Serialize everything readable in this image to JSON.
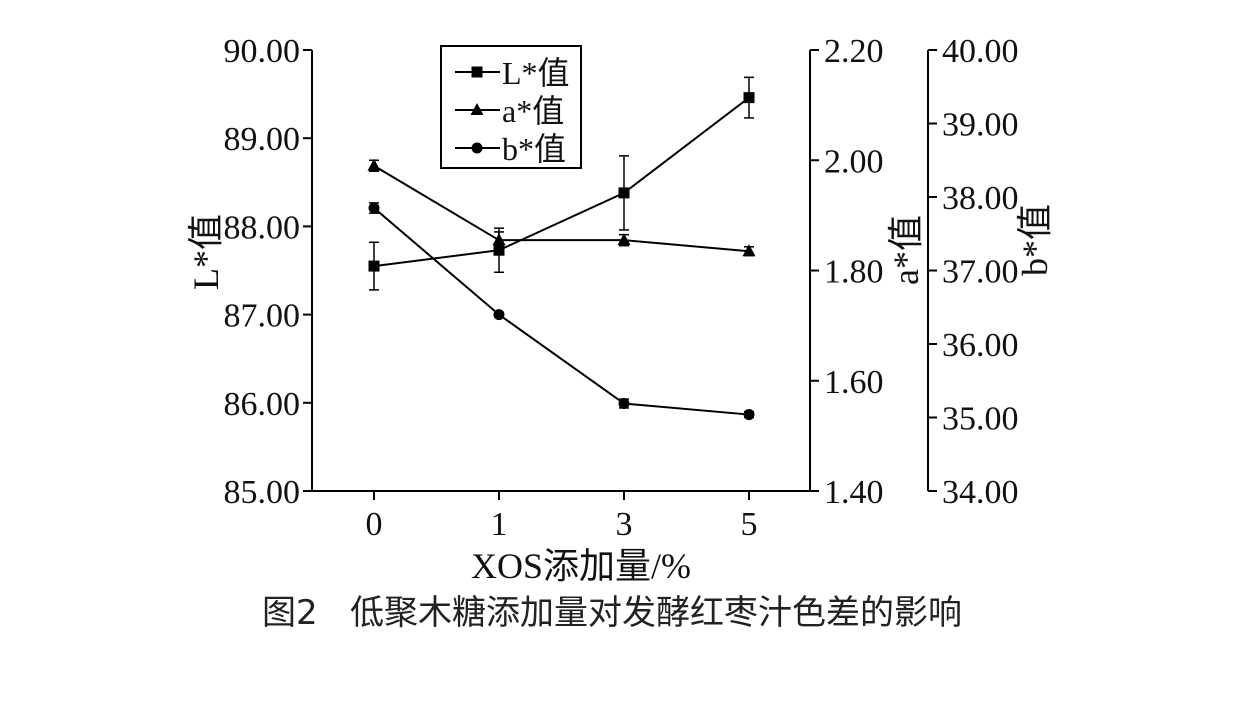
{
  "chart_data": {
    "type": "line",
    "x": [
      "0",
      "1",
      "3",
      "5"
    ],
    "xlabel": "XOS添加量/%",
    "series": [
      {
        "name": "L*值",
        "marker": "square",
        "axis": "left",
        "values": [
          87.55,
          87.73,
          88.38,
          89.46
        ],
        "errors": [
          0.27,
          0.25,
          0.42,
          0.23
        ]
      },
      {
        "name": "a*值",
        "marker": "triangle",
        "axis": "right1",
        "values": [
          1.99,
          1.855,
          1.855,
          1.835
        ],
        "errors": [
          0.01,
          0.015,
          0.01,
          0.008
        ]
      },
      {
        "name": "b*值",
        "marker": "circle",
        "axis": "right2",
        "values": [
          37.85,
          36.4,
          35.19,
          35.04
        ],
        "errors": [
          0.07,
          0.03,
          0.06,
          0.04
        ]
      }
    ],
    "axes": {
      "left": {
        "label": "L*值",
        "range": [
          85,
          90
        ],
        "ticks": [
          "85.00",
          "86.00",
          "87.00",
          "88.00",
          "89.00",
          "90.00"
        ]
      },
      "right1": {
        "label": "a*值",
        "range": [
          1.4,
          2.2
        ],
        "ticks": [
          "1.40",
          "1.60",
          "1.80",
          "2.00",
          "2.20"
        ]
      },
      "right2": {
        "label": "b*值",
        "range": [
          34,
          40
        ],
        "ticks": [
          "34.00",
          "35.00",
          "36.00",
          "37.00",
          "38.00",
          "39.00",
          "40.00"
        ]
      }
    },
    "legend_position": "top-left",
    "grid": false
  },
  "caption": "图2   低聚木糖添加量对发酵红枣汁色差的影响"
}
